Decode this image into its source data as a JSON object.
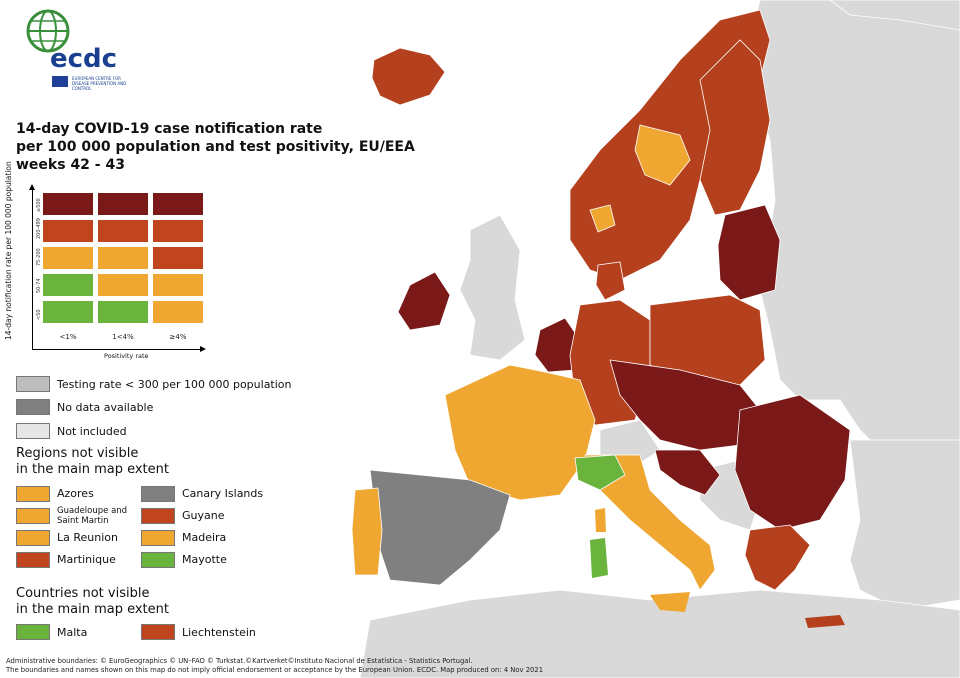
{
  "colors": {
    "sea": "#ffffff",
    "non_eu": "#d9d9d9",
    "dark_red": "#7b1818",
    "red": "#b5401d",
    "orange_red": "#c0441e",
    "orange": "#f0a732",
    "green": "#6ab43e",
    "grey_low": "#bdbdbd",
    "grey_nodata": "#808080",
    "not_included": "#e6e6e6"
  },
  "logo": {
    "name": "ecdc",
    "subtitle": "EUROPEAN CENTRE FOR DISEASE PREVENTION AND CONTROL"
  },
  "title": {
    "line1": "14-day COVID-19 case notification rate",
    "line2": "per 100 000 population and test positivity, EU/EEA",
    "line3": "weeks 42 - 43"
  },
  "matrix": {
    "y_axis_label": "14-day notification rate per 100 000 population",
    "x_axis_label": "Positivity rate",
    "x_ticks": [
      "<1%",
      "1<4%",
      "≥4%"
    ],
    "y_ticks": [
      "≥500",
      "200-499",
      "75-200",
      "50-74",
      "<50"
    ],
    "cells": [
      [
        "dark_red",
        "dark_red",
        "dark_red"
      ],
      [
        "orange_red",
        "orange_red",
        "orange_red"
      ],
      [
        "orange",
        "orange",
        "orange_red"
      ],
      [
        "green",
        "orange",
        "orange"
      ],
      [
        "green",
        "green",
        "orange"
      ]
    ]
  },
  "legend": {
    "testing_rate": "Testing rate < 300 per 100 000 population",
    "no_data": "No data available",
    "not_included": "Not included",
    "regions_heading_1": "Regions not visible",
    "regions_heading_2": "in the main map extent",
    "regions": [
      {
        "name": "Azores",
        "color": "orange"
      },
      {
        "name": "Canary Islands",
        "color": "grey_nodata"
      },
      {
        "name": "Guadeloupe and Saint Martin",
        "color": "orange"
      },
      {
        "name": "Guyane",
        "color": "orange_red"
      },
      {
        "name": "La Reunion",
        "color": "orange"
      },
      {
        "name": "Madeira",
        "color": "orange"
      },
      {
        "name": "Martinique",
        "color": "orange_red"
      },
      {
        "name": "Mayotte",
        "color": "green"
      }
    ],
    "countries_heading_1": "Countries not visible",
    "countries_heading_2": "in the main map extent",
    "countries": [
      {
        "name": "Malta",
        "color": "green"
      },
      {
        "name": "Liechtenstein",
        "color": "orange_red"
      }
    ]
  },
  "footer": {
    "line1": "Administrative boundaries: © EuroGeographics © UN–FAO © Turkstat.©Kartverket©Instituto Nacional de Estatística - Statistics Portugal.",
    "line2": "The boundaries and names shown on this map do not imply official endorsement or acceptance by the European Union. ECDC. Map produced on: 4 Nov 2021"
  }
}
